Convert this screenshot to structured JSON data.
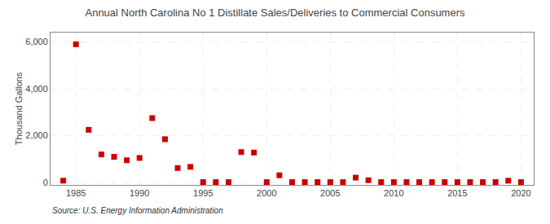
{
  "chart_data": {
    "type": "scatter",
    "title": "Annual North Carolina No 1 Distillate Sales/Deliveries to Commercial Consumers",
    "ylabel": "Thousand Gallons",
    "annotation": "Source: U.S. Energy Information Administration",
    "color": "#cc0000",
    "marker": "square",
    "x": [
      1984,
      1985,
      1986,
      1987,
      1988,
      1989,
      1990,
      1991,
      1992,
      1993,
      1994,
      1995,
      1996,
      1997,
      1998,
      1999,
      2000,
      2001,
      2002,
      2003,
      2004,
      2005,
      2006,
      2007,
      2008,
      2009,
      2010,
      2011,
      2012,
      2013,
      2014,
      2015,
      2016,
      2017,
      2018,
      2019,
      2020
    ],
    "values": [
      80,
      5900,
      2250,
      1200,
      1100,
      950,
      1050,
      2750,
      1850,
      620,
      670,
      20,
      20,
      20,
      1300,
      1280,
      20,
      310,
      20,
      20,
      20,
      20,
      20,
      210,
      100,
      20,
      20,
      20,
      20,
      20,
      20,
      20,
      20,
      20,
      20,
      80,
      20
    ],
    "xlim": [
      1983,
      2021
    ],
    "xticks": [
      1985,
      1990,
      1995,
      2000,
      2005,
      2010,
      2015,
      2020
    ],
    "ylim": [
      -100,
      6400
    ],
    "yticks": [
      0,
      {
        "value": 2000,
        "label": "2,000"
      },
      {
        "value": 4000,
        "label": "4,000"
      },
      {
        "value": 6000,
        "label": "6,000"
      }
    ],
    "grid": true
  }
}
